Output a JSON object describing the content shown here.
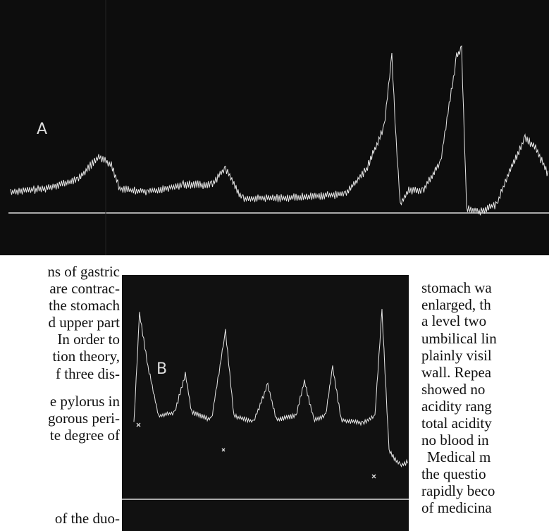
{
  "figures": [
    {
      "label": "A"
    },
    {
      "label": "B"
    }
  ],
  "left_column": {
    "lines": [
      "ns of gastric",
      "are contrac-",
      "the stomach",
      "d upper part",
      "In order to",
      "tion theory,",
      "f three dis-",
      "e pylorus in",
      "gorous peri-",
      "te degree of",
      "of the duo-"
    ]
  },
  "right_column": {
    "lines": [
      "stomach wa",
      "enlarged, th",
      "a level two",
      "umbilical lin",
      "plainly visil",
      "wall. Repea",
      "showed no",
      "acidity rang",
      "total acidity",
      "no blood in",
      "Medical m",
      "the questio",
      "rapidly beco",
      "of medicina"
    ]
  }
}
